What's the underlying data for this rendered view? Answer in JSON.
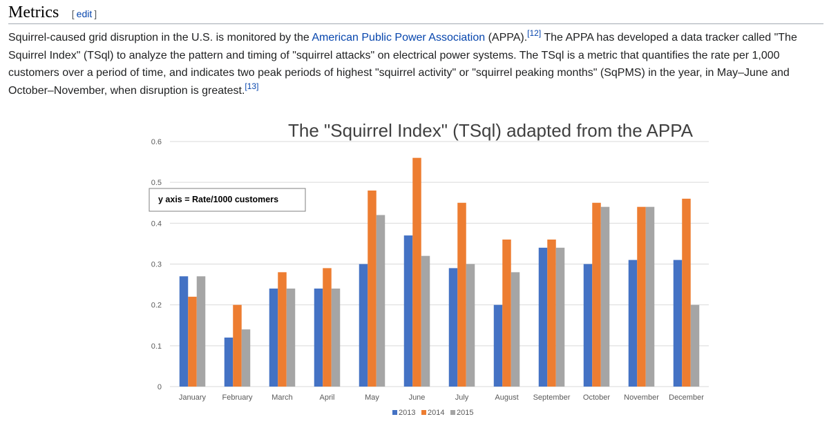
{
  "section": {
    "title": "Metrics",
    "edit_open": "[",
    "edit_label": "edit",
    "edit_close": "]"
  },
  "paragraph": {
    "p1": "Squirrel-caused grid disruption in the U.S. is monitored by the ",
    "link1": "American Public Power Association",
    "p2": " (APPA).",
    "ref1": "[12]",
    "p3": " The APPA has developed a data tracker called \"The Squirrel Index\" (TSql) to analyze the pattern and timing of \"squirrel attacks\" on electrical power systems. The TSql is a metric that quantifies the rate per 1,000 customers over a period of time, and indicates two peak periods of highest \"squirrel activity\" or \"squirrel peaking months\" (SqPMS) in the year, in May–June and October–November, when disruption is greatest.",
    "ref2": "[13]"
  },
  "chart_data": {
    "type": "bar",
    "title": "The \"Squirrel Index\" (TSql) adapted from the APPA",
    "annotation": "y axis = Rate/1000 customers",
    "categories": [
      "January",
      "February",
      "March",
      "April",
      "May",
      "June",
      "July",
      "August",
      "September",
      "October",
      "November",
      "December"
    ],
    "series": [
      {
        "name": "2013",
        "color": "#4472c4",
        "values": [
          0.27,
          0.12,
          0.24,
          0.24,
          0.3,
          0.37,
          0.29,
          0.2,
          0.34,
          0.3,
          0.31,
          0.31
        ]
      },
      {
        "name": "2014",
        "color": "#ed7d31",
        "values": [
          0.22,
          0.2,
          0.28,
          0.29,
          0.48,
          0.56,
          0.45,
          0.36,
          0.36,
          0.45,
          0.44,
          0.46
        ]
      },
      {
        "name": "2015",
        "color": "#a5a5a5",
        "values": [
          0.27,
          0.14,
          0.24,
          0.24,
          0.42,
          0.32,
          0.3,
          0.28,
          0.34,
          0.44,
          0.44,
          0.2
        ]
      }
    ],
    "yticks": [
      "0",
      "0.1",
      "0.2",
      "0.3",
      "0.4",
      "0.5",
      "0.6"
    ],
    "ylim": [
      0,
      0.6
    ],
    "grid": true,
    "legend_position": "bottom"
  }
}
